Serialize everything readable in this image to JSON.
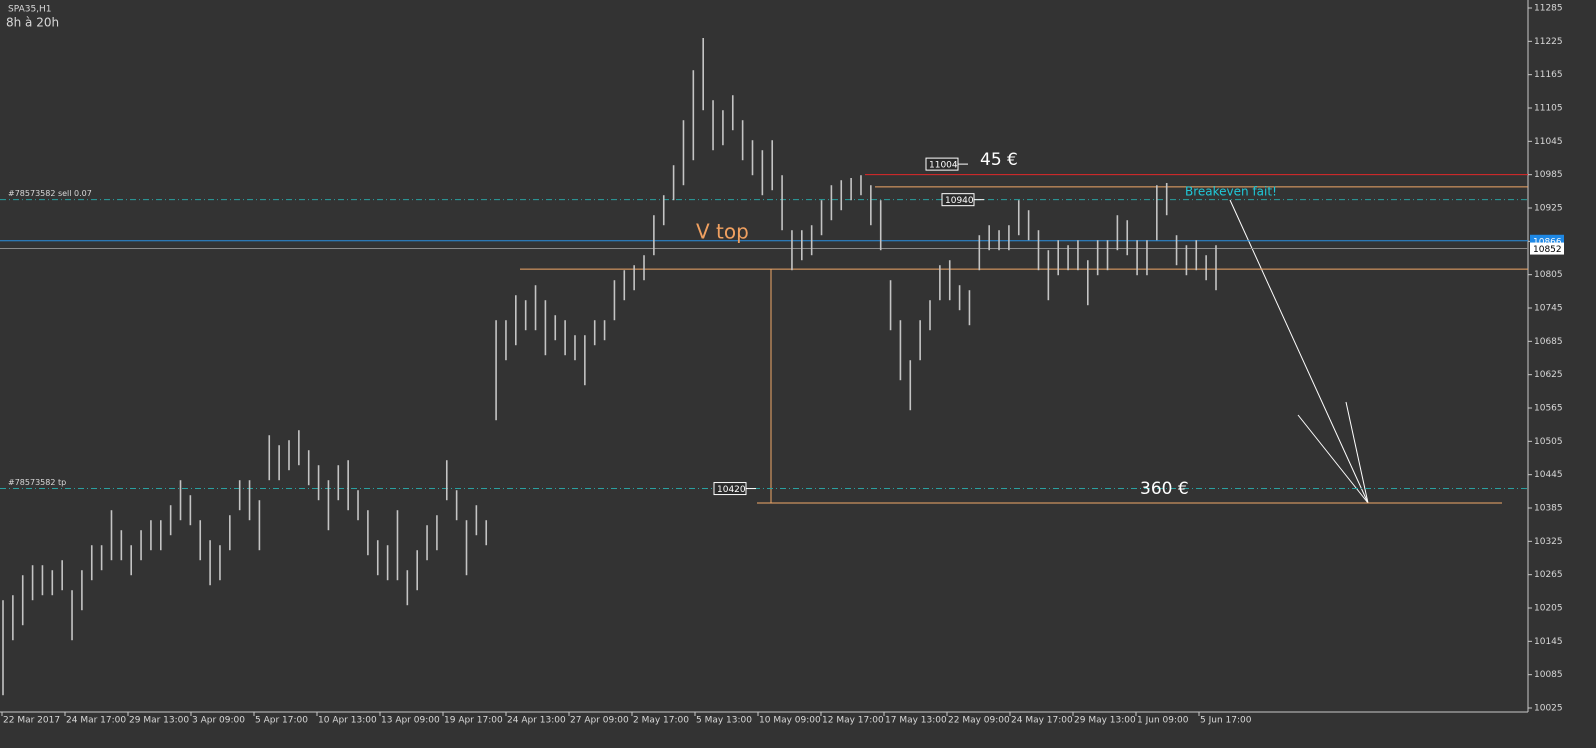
{
  "symbol": "SPA35,H1",
  "subtitle": "8h à 20h",
  "chart_data": {
    "type": "ohlc",
    "color": "#c4c4c4",
    "categories": [
      "22 Mar 2017",
      "24 Mar 17:00",
      "29 Mar 13:00",
      "3 Apr 09:00",
      "5 Apr 17:00",
      "10 Apr 13:00",
      "13 Apr 09:00",
      "19 Apr 17:00",
      "24 Apr 13:00",
      "27 Apr 09:00",
      "2 May 17:00",
      "5 May 13:00",
      "10 May 09:00",
      "12 May 17:00",
      "17 May 13:00",
      "22 May 09:00",
      "24 May 17:00",
      "29 May 13:00",
      "1 Jun 09:00",
      "5 Jun 17:00"
    ],
    "bars": [
      [
        10048,
        10219
      ],
      [
        10147,
        10228
      ],
      [
        10174,
        10264
      ],
      [
        10219,
        10282
      ],
      [
        10228,
        10282
      ],
      [
        10228,
        10273
      ],
      [
        10237,
        10291
      ],
      [
        10147,
        10237
      ],
      [
        10201,
        10273
      ],
      [
        10255,
        10318
      ],
      [
        10273,
        10318
      ],
      [
        10291,
        10381
      ],
      [
        10291,
        10345
      ],
      [
        10264,
        10318
      ],
      [
        10291,
        10345
      ],
      [
        10309,
        10363
      ],
      [
        10309,
        10363
      ],
      [
        10336,
        10390
      ],
      [
        10363,
        10435
      ],
      [
        10354,
        10408
      ],
      [
        10291,
        10363
      ],
      [
        10246,
        10327
      ],
      [
        10255,
        10318
      ],
      [
        10309,
        10372
      ],
      [
        10381,
        10435
      ],
      [
        10363,
        10435
      ],
      [
        10309,
        10399
      ],
      [
        10435,
        10516
      ],
      [
        10435,
        10498
      ],
      [
        10453,
        10507
      ],
      [
        10462,
        10525
      ],
      [
        10426,
        10489
      ],
      [
        10399,
        10462
      ],
      [
        10345,
        10435
      ],
      [
        10399,
        10462
      ],
      [
        10381,
        10471
      ],
      [
        10363,
        10417
      ],
      [
        10300,
        10381
      ],
      [
        10264,
        10327
      ],
      [
        10255,
        10318
      ],
      [
        10255,
        10381
      ],
      [
        10210,
        10273
      ],
      [
        10237,
        10309
      ],
      [
        10291,
        10354
      ],
      [
        10309,
        10372
      ],
      [
        10399,
        10471
      ],
      [
        10363,
        10417
      ],
      [
        10264,
        10363
      ],
      [
        10336,
        10390
      ],
      [
        10318,
        10363
      ],
      [
        10543,
        10723
      ],
      [
        10651,
        10723
      ],
      [
        10678,
        10768
      ],
      [
        10705,
        10759
      ],
      [
        10705,
        10786
      ],
      [
        10660,
        10759
      ],
      [
        10687,
        10732
      ],
      [
        10660,
        10723
      ],
      [
        10651,
        10696
      ],
      [
        10606,
        10696
      ],
      [
        10678,
        10723
      ],
      [
        10687,
        10723
      ],
      [
        10723,
        10795
      ],
      [
        10759,
        10813
      ],
      [
        10777,
        10822
      ],
      [
        10795,
        10840
      ],
      [
        10840,
        10912
      ],
      [
        10894,
        10948
      ],
      [
        10939,
        11002
      ],
      [
        10966,
        11083
      ],
      [
        11011,
        11173
      ],
      [
        11101,
        11231
      ],
      [
        11029,
        11119
      ],
      [
        11038,
        11101
      ],
      [
        11065,
        11128
      ],
      [
        11011,
        11083
      ],
      [
        10984,
        11047
      ],
      [
        10948,
        11029
      ],
      [
        10957,
        11047
      ],
      [
        10885,
        10984
      ],
      [
        10813,
        10885
      ],
      [
        10831,
        10885
      ],
      [
        10840,
        10894
      ],
      [
        10876,
        10939
      ],
      [
        10903,
        10966
      ],
      [
        10921,
        10975
      ],
      [
        10939,
        10979
      ],
      [
        10948,
        10984
      ],
      [
        10894,
        10966
      ],
      [
        10849,
        10939
      ],
      [
        10705,
        10795
      ],
      [
        10615,
        10723
      ],
      [
        10561,
        10651
      ],
      [
        10651,
        10723
      ],
      [
        10705,
        10759
      ],
      [
        10759,
        10822
      ],
      [
        10759,
        10831
      ],
      [
        10741,
        10786
      ],
      [
        10714,
        10777
      ],
      [
        10813,
        10876
      ],
      [
        10849,
        10894
      ],
      [
        10849,
        10885
      ],
      [
        10849,
        10894
      ],
      [
        10876,
        10939
      ],
      [
        10867,
        10921
      ],
      [
        10813,
        10885
      ],
      [
        10759,
        10849
      ],
      [
        10804,
        10867
      ],
      [
        10813,
        10858
      ],
      [
        10813,
        10867
      ],
      [
        10750,
        10831
      ],
      [
        10804,
        10867
      ],
      [
        10813,
        10867
      ],
      [
        10849,
        10912
      ],
      [
        10840,
        10903
      ],
      [
        10804,
        10867
      ],
      [
        10804,
        10867
      ],
      [
        10867,
        10966
      ],
      [
        10912,
        10970
      ],
      [
        10822,
        10876
      ],
      [
        10804,
        10858
      ],
      [
        10813,
        10867
      ],
      [
        10795,
        10840
      ],
      [
        10777,
        10858
      ]
    ],
    "ylim": [
      10025,
      11285
    ],
    "yticks": [
      10025,
      10085,
      10145,
      10205,
      10265,
      10325,
      10385,
      10445,
      10505,
      10565,
      10625,
      10685,
      10745,
      10805,
      10865,
      10925,
      10985,
      11045,
      11105,
      11165,
      11225,
      11285
    ],
    "levels": [
      {
        "value": 10985,
        "color": "#e0282a"
      },
      {
        "value": 10963,
        "color": "#f0a868"
      },
      {
        "value": 10815,
        "color": "#f0a868"
      },
      {
        "value": 10394,
        "color": "#f0a868"
      },
      {
        "value": 10866,
        "color": "#2a8fe0"
      },
      {
        "value": 10852,
        "color": "#8a8a8a"
      }
    ],
    "orders": [
      {
        "name": "#78573582 sell 0.07",
        "value": 10940
      },
      {
        "name": "#78573582 tp",
        "value": 10420
      }
    ],
    "markers": [
      11004,
      10940,
      10420
    ],
    "price_tags": [
      {
        "value": 10866,
        "color": "#1e88e5"
      },
      {
        "value": 10852,
        "color": "#ffffff"
      }
    ],
    "annotations": [
      "45 €",
      "V top",
      "Breakeven fait!",
      "360 €"
    ]
  }
}
